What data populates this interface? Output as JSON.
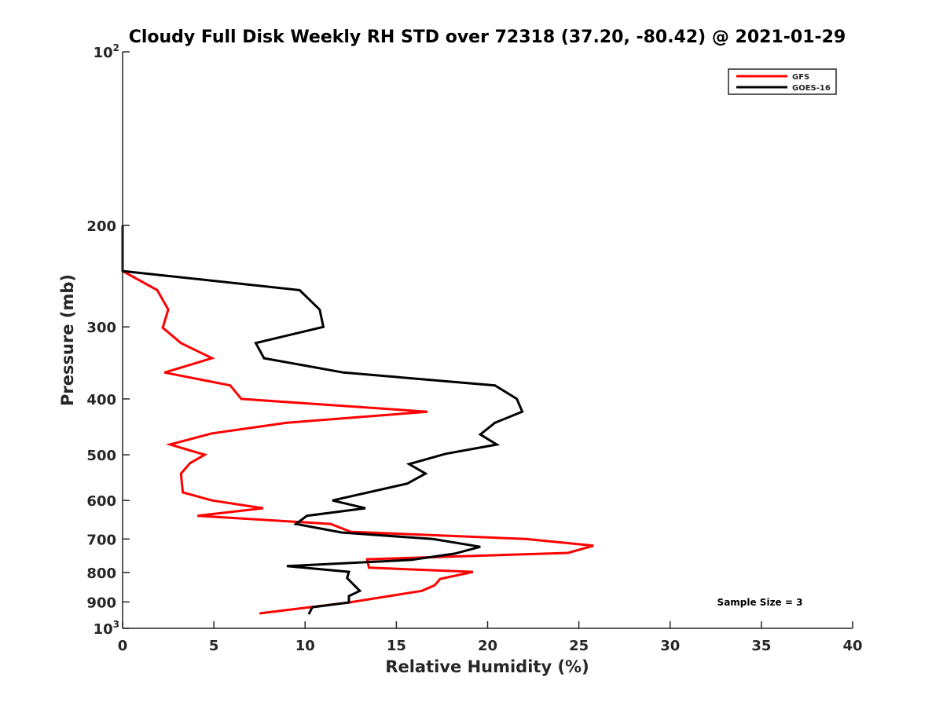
{
  "chart_data": {
    "type": "line",
    "title": "Cloudy Full Disk Weekly RH STD over 72318 (37.20, -80.42) @ 2021-01-29",
    "xlabel": "Relative Humidity (%)",
    "ylabel": "Pressure (mb)",
    "xlim": [
      0,
      40
    ],
    "ylim": [
      100,
      1000
    ],
    "yscale": "log",
    "y_reversed": true,
    "grid": false,
    "xticks": [
      "0",
      "5",
      "10",
      "15",
      "20",
      "25",
      "30",
      "35",
      "40"
    ],
    "xtick_values": [
      0,
      5,
      10,
      15,
      20,
      25,
      30,
      35,
      40
    ],
    "yticks": [
      {
        "value": 100,
        "base": "10",
        "exp": "2"
      },
      {
        "value": 200,
        "label": "200"
      },
      {
        "value": 300,
        "label": "300"
      },
      {
        "value": 400,
        "label": "400"
      },
      {
        "value": 500,
        "label": "500"
      },
      {
        "value": 600,
        "label": "600"
      },
      {
        "value": 700,
        "label": "700"
      },
      {
        "value": 800,
        "label": "800"
      },
      {
        "value": 900,
        "label": "900"
      },
      {
        "value": 1000,
        "base": "10",
        "exp": "3"
      }
    ],
    "legend_position": "top-right",
    "annotation": "Sample Size = 3",
    "series": [
      {
        "name": "GFS",
        "color": "#ff0000",
        "points": [
          [
            0,
            240
          ],
          [
            1.9,
            259
          ],
          [
            2.5,
            280
          ],
          [
            2.2,
            301
          ],
          [
            3.2,
            320
          ],
          [
            4.9,
            340
          ],
          [
            2.3,
            360
          ],
          [
            5.9,
            379
          ],
          [
            6.5,
            400
          ],
          [
            16.7,
            421
          ],
          [
            9.0,
            440
          ],
          [
            4.9,
            459
          ],
          [
            2.6,
            480
          ],
          [
            4.5,
            500
          ],
          [
            3.7,
            517
          ],
          [
            3.2,
            539
          ],
          [
            3.3,
            581
          ],
          [
            4.9,
            600
          ],
          [
            7.7,
            619
          ],
          [
            4.1,
            638
          ],
          [
            11.4,
            659
          ],
          [
            12.5,
            680
          ],
          [
            22.1,
            700
          ],
          [
            25.8,
            719
          ],
          [
            24.4,
            740
          ],
          [
            13.4,
            759
          ],
          [
            13.5,
            785
          ],
          [
            19.2,
            798
          ],
          [
            17.4,
            821
          ],
          [
            17.1,
            842
          ],
          [
            16.4,
            861
          ],
          [
            12.4,
            902
          ],
          [
            7.5,
            942
          ]
        ]
      },
      {
        "name": "GOES-16",
        "color": "#000000",
        "points": [
          [
            0,
            200
          ],
          [
            0,
            240
          ],
          [
            9.7,
            259
          ],
          [
            10.8,
            280
          ],
          [
            11.0,
            300
          ],
          [
            7.3,
            320
          ],
          [
            7.75,
            340
          ],
          [
            12.1,
            360
          ],
          [
            20.4,
            379
          ],
          [
            21.6,
            400
          ],
          [
            21.9,
            421
          ],
          [
            20.4,
            440
          ],
          [
            19.6,
            461
          ],
          [
            20.5,
            480
          ],
          [
            17.7,
            498
          ],
          [
            15.7,
            519
          ],
          [
            16.6,
            539
          ],
          [
            15.6,
            561
          ],
          [
            11.5,
            600
          ],
          [
            13.3,
            619
          ],
          [
            10.1,
            638
          ],
          [
            9.5,
            659
          ],
          [
            12.0,
            682
          ],
          [
            17.0,
            700
          ],
          [
            19.6,
            722
          ],
          [
            18.2,
            742
          ],
          [
            15.8,
            761
          ],
          [
            9.0,
            780
          ],
          [
            12.4,
            798
          ],
          [
            12.3,
            818
          ],
          [
            13.0,
            861
          ],
          [
            12.4,
            879
          ],
          [
            12.4,
            902
          ],
          [
            10.4,
            919
          ],
          [
            10.2,
            945
          ]
        ]
      }
    ]
  }
}
